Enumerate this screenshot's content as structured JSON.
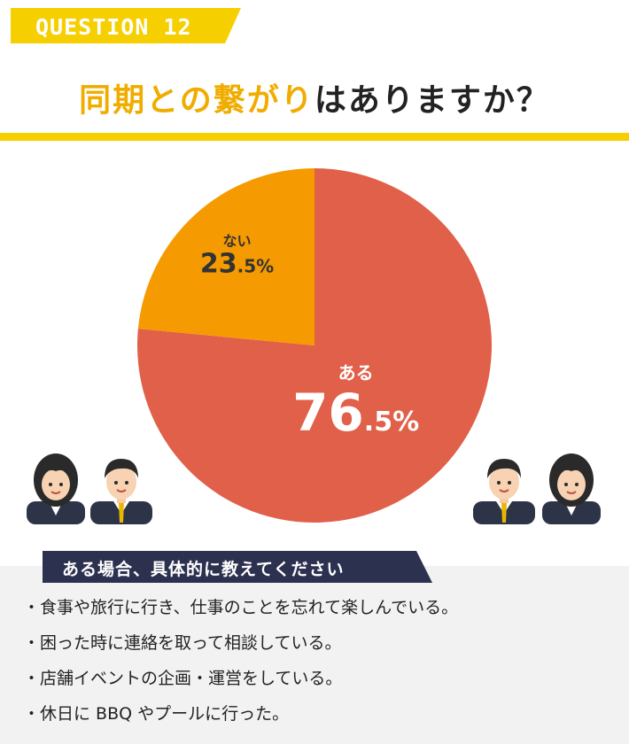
{
  "header": {
    "question_label": "QUESTION 12",
    "title_highlight": "同期との繋がり",
    "title_rest": "はありますか？"
  },
  "chart_data": {
    "type": "pie",
    "slices": [
      {
        "label": "ある",
        "value": 76.5,
        "color": "#e0604a"
      },
      {
        "label": "ない",
        "value": 23.5,
        "color": "#f59a00"
      }
    ],
    "unit": "%"
  },
  "comments": {
    "heading": "ある場合、具体的に教えてください",
    "items": [
      "・食事や旅行に行き、仕事のことを忘れて楽しんでいる。",
      "・困った時に連絡を取って相談している。",
      "・店舗イベントの企画・運営をしている。",
      "・休日に BBQ やプールに行った。"
    ]
  },
  "colors": {
    "accent_yellow": "#f6cf00",
    "title_highlight": "#f0ad00",
    "banner_navy": "#2d3150",
    "panel_gray": "#f2f2f2"
  }
}
